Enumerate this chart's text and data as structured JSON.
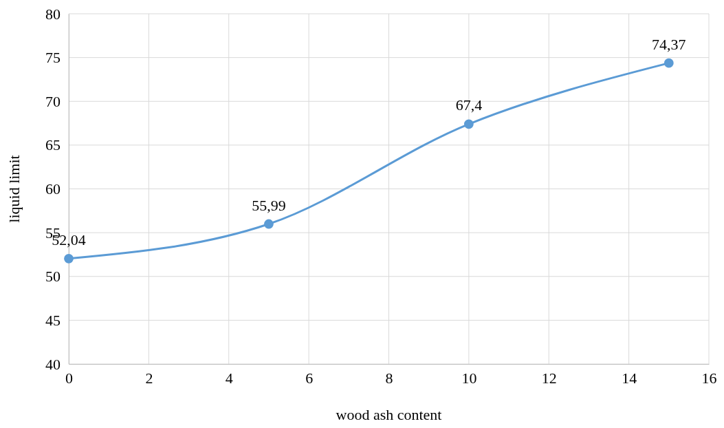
{
  "chart_data": {
    "type": "line",
    "xlabel": "wood ash content",
    "ylabel": "liquid limit",
    "x": [
      0,
      5,
      10,
      15
    ],
    "series": [
      {
        "color": "#5b9bd5",
        "values": [
          52.04,
          55.99,
          67.4,
          74.37
        ],
        "value_labels": [
          "52,04",
          "55,99",
          "67,4",
          "74,37"
        ]
      }
    ],
    "xlim": [
      0,
      16
    ],
    "xticks": [
      0,
      2,
      4,
      6,
      8,
      10,
      12,
      14,
      16
    ],
    "ylim": [
      40,
      80
    ],
    "yticks": [
      40,
      45,
      50,
      55,
      60,
      65,
      70,
      75,
      80
    ],
    "grid": true,
    "marker": "circle",
    "line_style": "solid"
  }
}
